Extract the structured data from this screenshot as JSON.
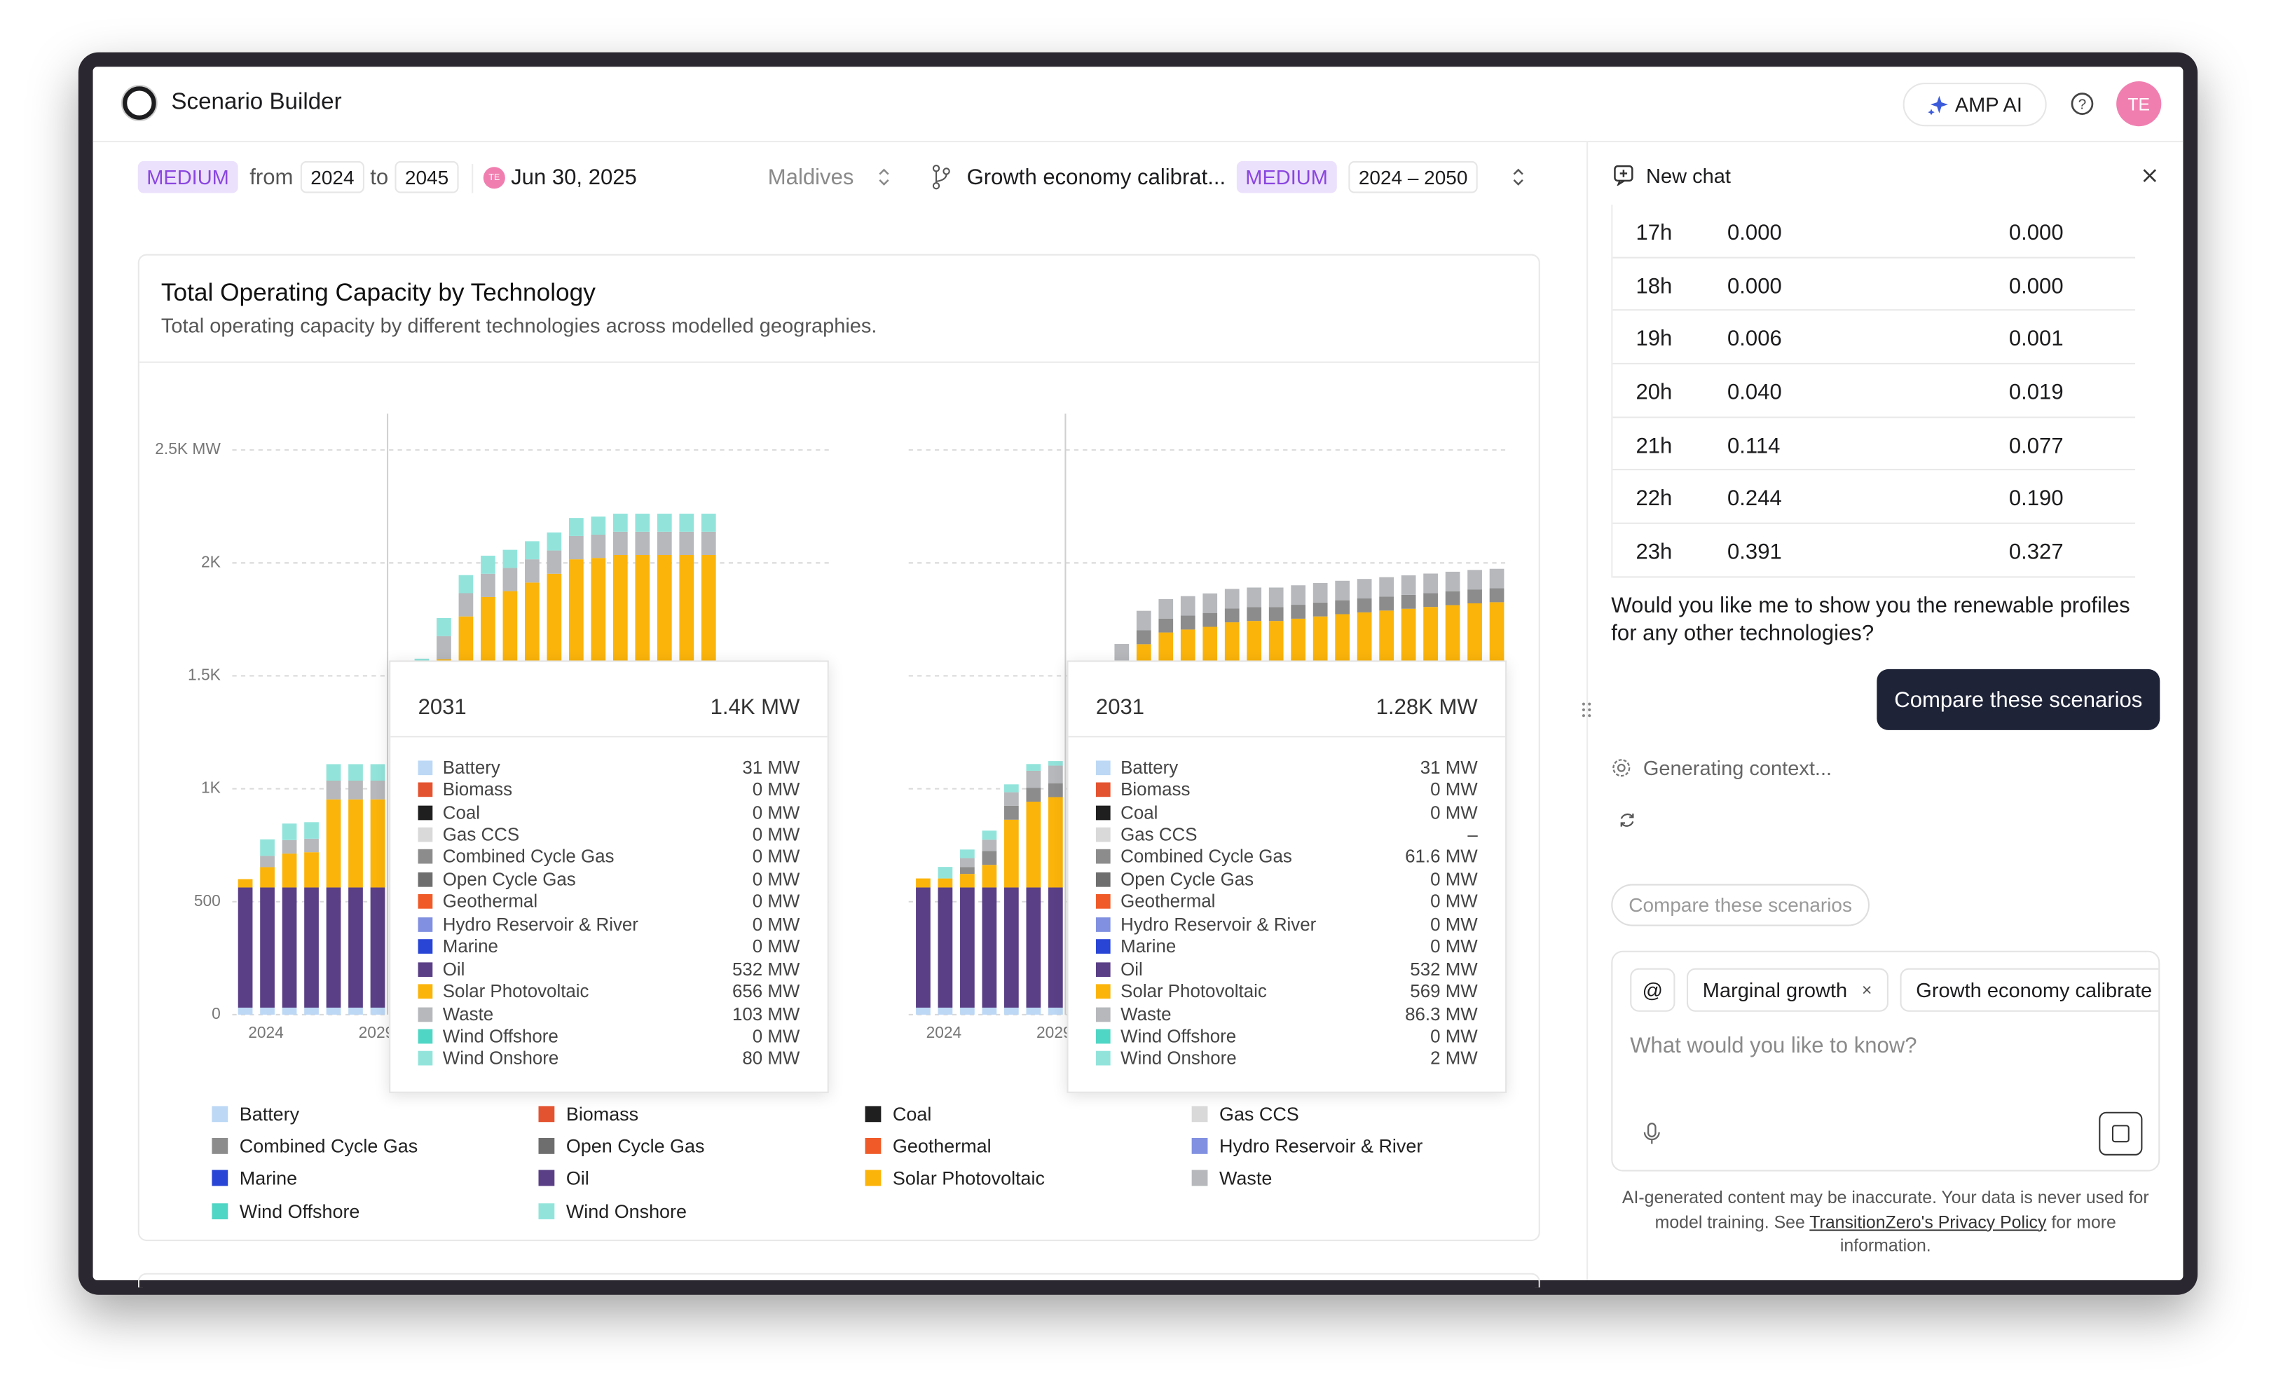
{
  "header": {
    "title": "Scenario Builder",
    "ai_button": "AMP AI",
    "avatar": "TE"
  },
  "toolbar": {
    "scenario_a": {
      "badge": "MEDIUM",
      "from_label": "from",
      "start": "2024",
      "to_label": "to",
      "end": "2045",
      "avatar": "TE",
      "date": "Jun 30, 2025",
      "region": "Maldives"
    },
    "scenario_b": {
      "name": "Growth economy calibrat...",
      "badge": "MEDIUM",
      "range": "2024 – 2050"
    }
  },
  "card": {
    "title": "Total Operating Capacity by Technology",
    "subtitle": "Total operating capacity by different technologies across modelled geographies."
  },
  "legend": [
    {
      "name": "Battery",
      "color": "#bcd8f5"
    },
    {
      "name": "Biomass",
      "color": "#e4532f"
    },
    {
      "name": "Coal",
      "color": "#1f1f1f"
    },
    {
      "name": "Gas CCS",
      "color": "#d9d9d9"
    },
    {
      "name": "Combined Cycle Gas",
      "color": "#8c8c8c"
    },
    {
      "name": "Open Cycle Gas",
      "color": "#6e6e6e"
    },
    {
      "name": "Geothermal",
      "color": "#f05a28"
    },
    {
      "name": "Hydro Reservoir & River",
      "color": "#8190e0"
    },
    {
      "name": "Marine",
      "color": "#2845d6"
    },
    {
      "name": "Oil",
      "color": "#5a3f86"
    },
    {
      "name": "Solar Photovoltaic",
      "color": "#fbb40a"
    },
    {
      "name": "Waste",
      "color": "#b6b8bb"
    },
    {
      "name": "Wind Offshore",
      "color": "#4fd6c4"
    },
    {
      "name": "Wind Onshore",
      "color": "#92e4db"
    }
  ],
  "chart_data": [
    {
      "type": "bar",
      "stacked": true,
      "grid": true,
      "show_ytick_labels": true,
      "categories": [
        "2024",
        null,
        null,
        null,
        null,
        "2029",
        null,
        null,
        null,
        null,
        null,
        null,
        null,
        null,
        null,
        null,
        null,
        null,
        null,
        null,
        null,
        null
      ],
      "ylim": [
        0,
        2500
      ],
      "yticks": [
        0,
        500,
        {
          "value": 1000,
          "label": "1K"
        },
        {
          "value": 1500,
          "label": "1.5K"
        },
        {
          "value": 2000,
          "label": "2K"
        },
        {
          "value": 2500,
          "label": "2.5K MW"
        }
      ],
      "series": [
        {
          "name": "Battery",
          "values": [
            31,
            31,
            31,
            31,
            31,
            31,
            31,
            31,
            31,
            31,
            31,
            31,
            31,
            31,
            31,
            31,
            31,
            31,
            31,
            31,
            31,
            31
          ]
        },
        {
          "name": "Oil",
          "values": [
            532,
            532,
            532,
            532,
            532,
            532,
            532,
            532,
            532,
            532,
            532,
            532,
            532,
            532,
            532,
            532,
            532,
            532,
            532,
            532,
            532,
            532
          ]
        },
        {
          "name": "Solar Photovoltaic",
          "values": [
            37,
            90,
            150,
            156,
            390,
            390,
            390,
            656,
            830,
            1010,
            1200,
            1286,
            1312,
            1350,
            1389,
            1453,
            1459,
            1472,
            1472,
            1472,
            1472,
            1472
          ]
        },
        {
          "name": "Waste",
          "values": [
            0,
            50,
            60,
            60,
            83,
            83,
            83,
            103,
            103,
            103,
            103,
            103,
            103,
            103,
            103,
            103,
            103,
            103,
            103,
            103,
            103,
            103
          ]
        },
        {
          "name": "Wind Onshore",
          "values": [
            0,
            73,
            73,
            73,
            73,
            73,
            73,
            80,
            80,
            80,
            80,
            80,
            80,
            80,
            80,
            80,
            80,
            80,
            80,
            80,
            80,
            80
          ]
        }
      ]
    },
    {
      "type": "bar",
      "stacked": true,
      "grid": true,
      "show_ytick_labels": false,
      "categories": [
        "2024",
        null,
        null,
        null,
        null,
        "2029",
        null,
        null,
        null,
        null,
        null,
        null,
        null,
        null,
        null,
        null,
        null,
        null,
        null,
        null,
        null,
        null,
        null,
        null,
        null,
        null,
        null
      ],
      "ylim": [
        0,
        2500
      ],
      "yticks": [
        0,
        500,
        1000,
        1500,
        2000,
        2500
      ],
      "series": [
        {
          "name": "Battery",
          "values": [
            31,
            31,
            31,
            31,
            31,
            31,
            31,
            31,
            31,
            31,
            31,
            31,
            31,
            31,
            31,
            31,
            31,
            31,
            31,
            31,
            31,
            31,
            31,
            31,
            31,
            31,
            31
          ]
        },
        {
          "name": "Oil",
          "values": [
            532,
            532,
            532,
            532,
            532,
            532,
            532,
            532,
            532,
            532,
            532,
            532,
            532,
            532,
            532,
            532,
            532,
            532,
            532,
            532,
            532,
            532,
            532,
            532,
            532,
            532,
            532
          ]
        },
        {
          "name": "Solar Photovoltaic",
          "values": [
            40,
            40,
            60,
            100,
            300,
            380,
            400,
            569,
            750,
            930,
            1077,
            1129,
            1142,
            1154,
            1174,
            1180,
            1180,
            1190,
            1200,
            1210,
            1218,
            1226,
            1234,
            1242,
            1250,
            1258,
            1263
          ]
        },
        {
          "name": "Combined Cycle Gas",
          "values": [
            0,
            0,
            30,
            61.6,
            61.6,
            61.6,
            61.6,
            61.6,
            61.6,
            61.6,
            61.6,
            61.6,
            61.6,
            61.6,
            61.6,
            61.6,
            61.6,
            61.6,
            61.6,
            61.6,
            61.6,
            61.6,
            61.6,
            61.6,
            61.6,
            61.6,
            61.6
          ]
        },
        {
          "name": "Waste",
          "values": [
            0,
            0,
            40,
            50,
            60,
            75,
            78,
            86.3,
            86.3,
            86.3,
            86.3,
            86.3,
            86.3,
            86.3,
            86.3,
            86.3,
            86.3,
            86.3,
            86.3,
            86.3,
            86.3,
            86.3,
            86.3,
            86.3,
            86.3,
            86.3,
            86.3
          ]
        },
        {
          "name": "Wind Onshore",
          "values": [
            0,
            51,
            38,
            40,
            35,
            30,
            20,
            2,
            0,
            0,
            0,
            0,
            0,
            0,
            0,
            0,
            0,
            0,
            0,
            0,
            0,
            0,
            0,
            0,
            0,
            0,
            0
          ]
        }
      ]
    }
  ],
  "tooltips": [
    {
      "year": "2031",
      "total": "1.4K MW",
      "rows": [
        [
          "Battery",
          "31 MW"
        ],
        [
          "Biomass",
          "0 MW"
        ],
        [
          "Coal",
          "0 MW"
        ],
        [
          "Gas CCS",
          "0 MW"
        ],
        [
          "Combined Cycle Gas",
          "0 MW"
        ],
        [
          "Open Cycle Gas",
          "0 MW"
        ],
        [
          "Geothermal",
          "0 MW"
        ],
        [
          "Hydro Reservoir & River",
          "0 MW"
        ],
        [
          "Marine",
          "0 MW"
        ],
        [
          "Oil",
          "532 MW"
        ],
        [
          "Solar Photovoltaic",
          "656 MW"
        ],
        [
          "Waste",
          "103 MW"
        ],
        [
          "Wind Offshore",
          "0 MW"
        ],
        [
          "Wind Onshore",
          "80 MW"
        ]
      ]
    },
    {
      "year": "2031",
      "total": "1.28K MW",
      "rows": [
        [
          "Battery",
          "31 MW"
        ],
        [
          "Biomass",
          "0 MW"
        ],
        [
          "Coal",
          "0 MW"
        ],
        [
          "Gas CCS",
          "–"
        ],
        [
          "Combined Cycle Gas",
          "61.6 MW"
        ],
        [
          "Open Cycle Gas",
          "0 MW"
        ],
        [
          "Geothermal",
          "0 MW"
        ],
        [
          "Hydro Reservoir & River",
          "0 MW"
        ],
        [
          "Marine",
          "0 MW"
        ],
        [
          "Oil",
          "532 MW"
        ],
        [
          "Solar Photovoltaic",
          "569 MW"
        ],
        [
          "Waste",
          "86.3 MW"
        ],
        [
          "Wind Offshore",
          "0 MW"
        ],
        [
          "Wind Onshore",
          "2 MW"
        ]
      ]
    }
  ],
  "chat": {
    "title": "New chat",
    "table": [
      [
        "17h",
        "0.000",
        "0.000"
      ],
      [
        "18h",
        "0.000",
        "0.000"
      ],
      [
        "19h",
        "0.006",
        "0.001"
      ],
      [
        "20h",
        "0.040",
        "0.019"
      ],
      [
        "21h",
        "0.114",
        "0.077"
      ],
      [
        "22h",
        "0.244",
        "0.190"
      ],
      [
        "23h",
        "0.391",
        "0.327"
      ]
    ],
    "question": "Would you like me to show you the renewable profiles for any other technologies?",
    "primary_action": "Compare these scenarios",
    "status": "Generating context...",
    "suggestion": "Compare these scenarios",
    "chips": [
      "@",
      "Marginal growth",
      "Growth economy calibrate"
    ],
    "placeholder": "What would you like to know?",
    "disclaimer": {
      "before": "AI-generated content may be inaccurate. Your data is never used for model training. See ",
      "link": "TransitionZero's Privacy Policy",
      "after": " for more information."
    }
  }
}
